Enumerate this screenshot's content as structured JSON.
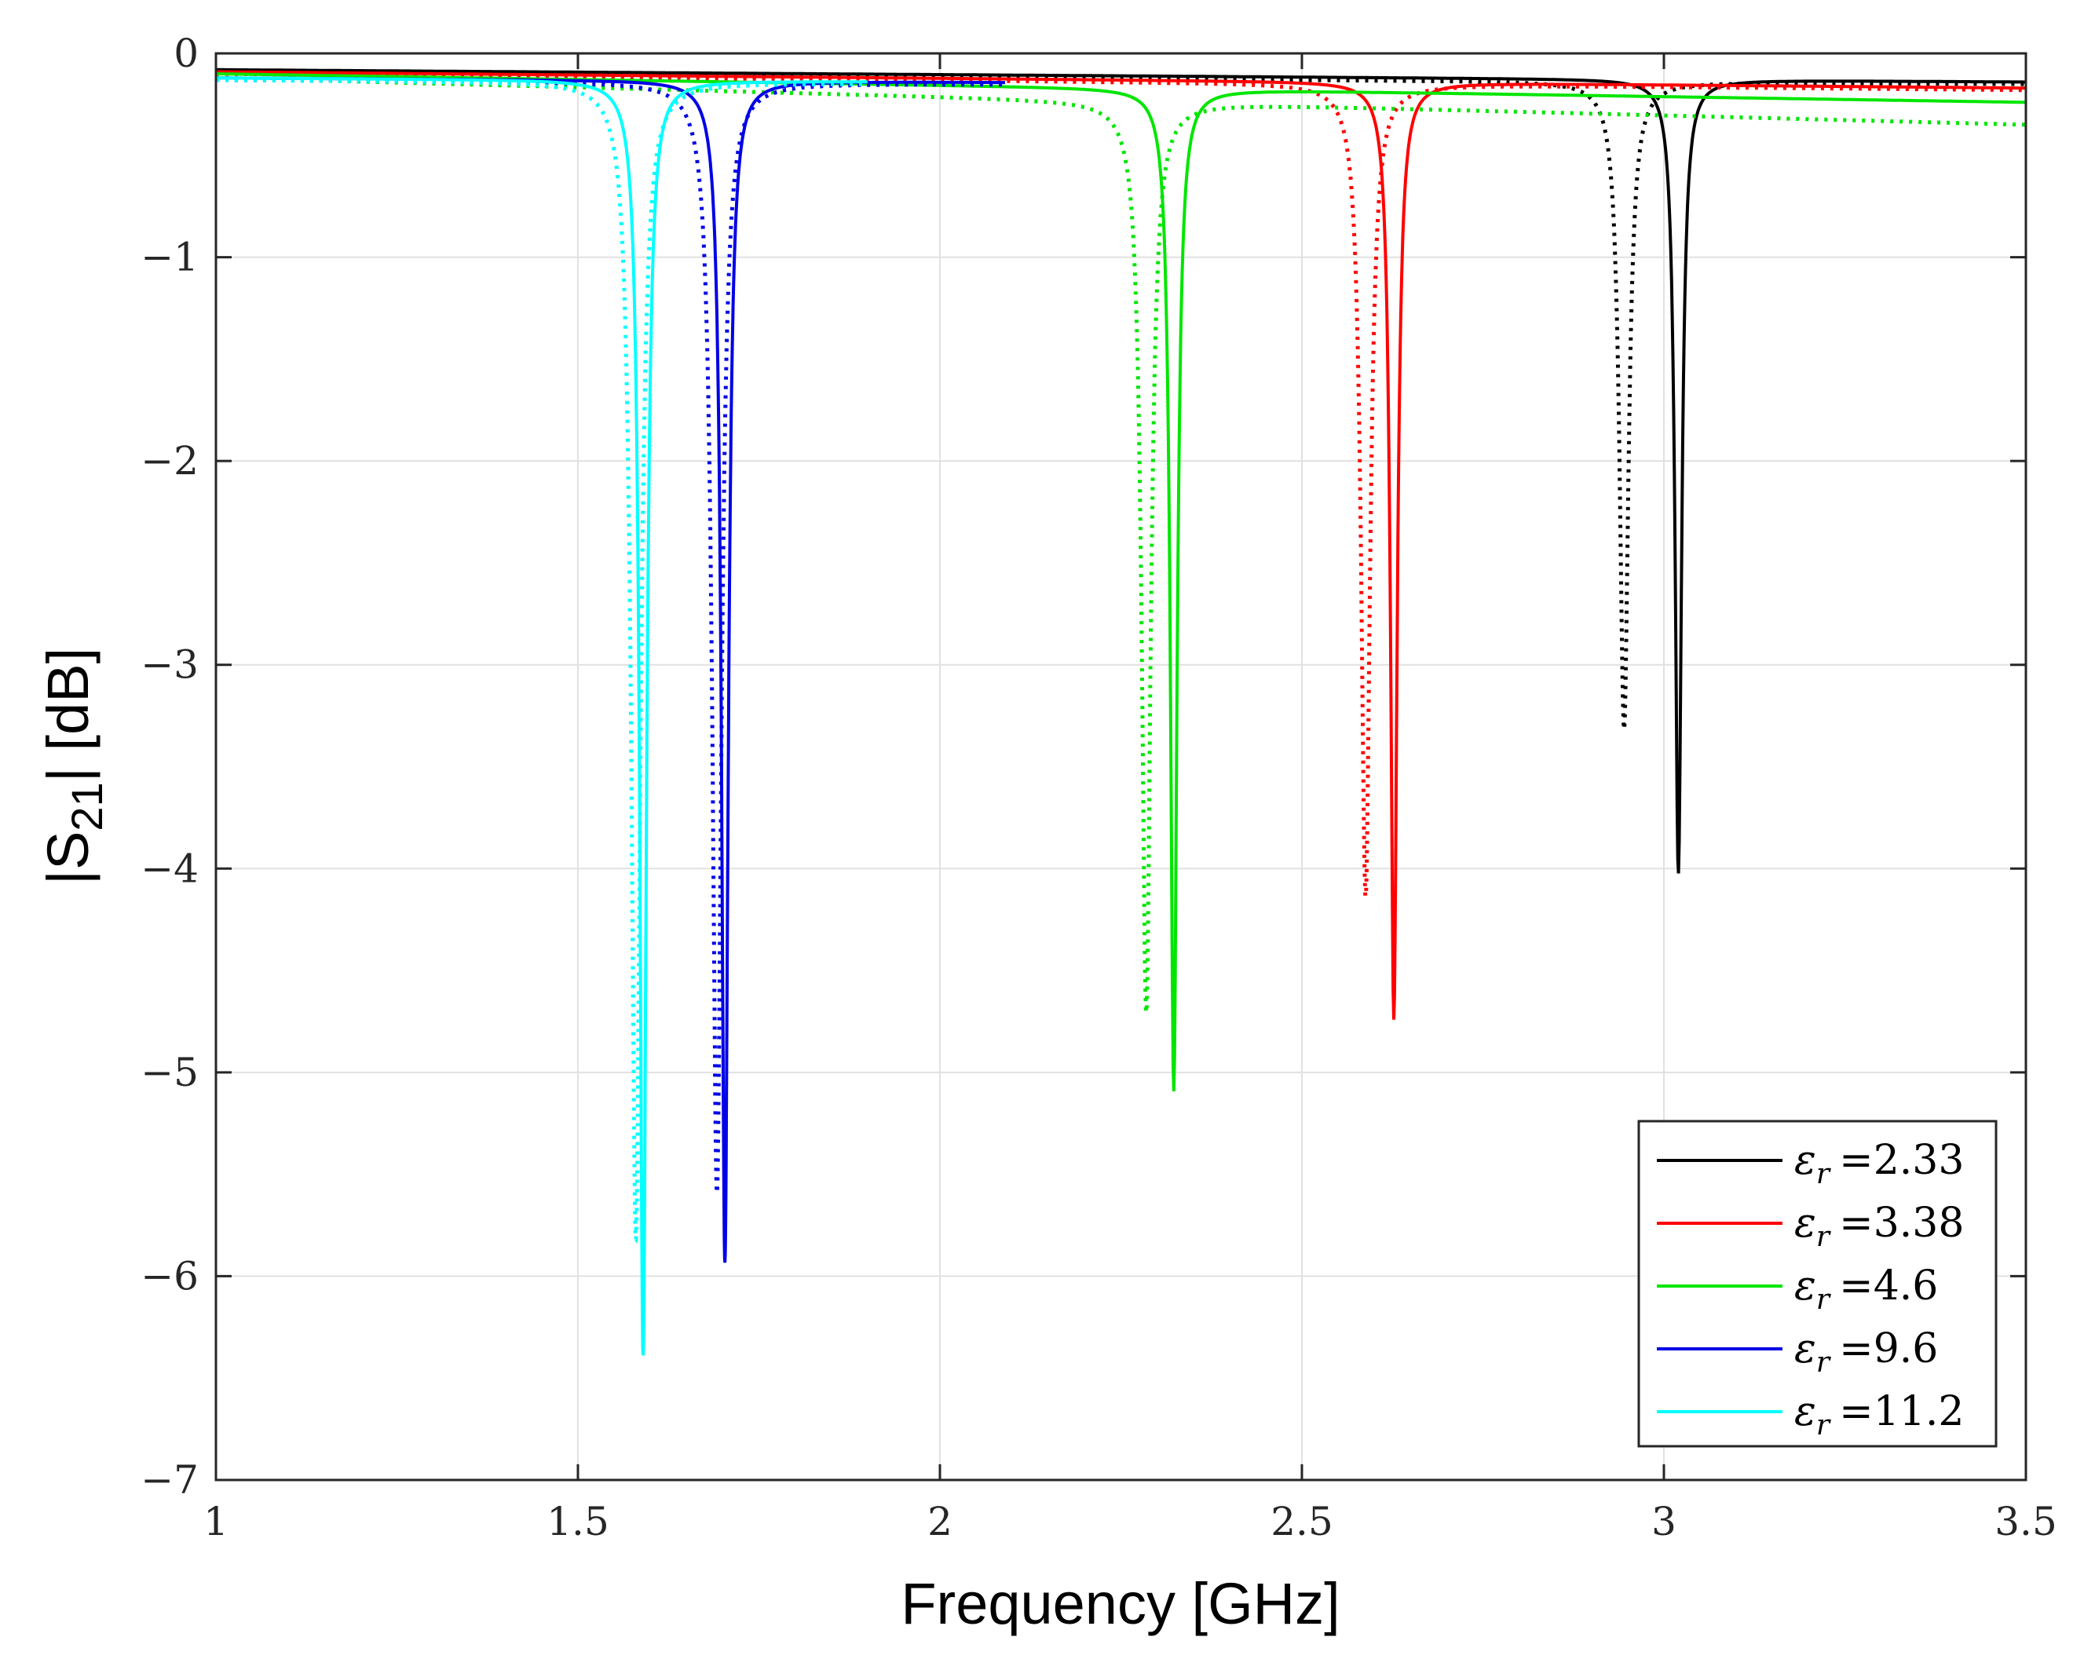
{
  "chart_data": {
    "type": "line",
    "title": "",
    "xlabel": "Frequency [GHz]",
    "ylabel_main": "|S",
    "ylabel_sub": "21",
    "ylabel_rest": "| [dB]",
    "xlim": [
      1,
      3.5
    ],
    "ylim": [
      -7,
      0
    ],
    "xticks": [
      1,
      1.5,
      2,
      2.5,
      3,
      3.5
    ],
    "xtick_labels": [
      "1",
      "1.5",
      "2",
      "2.5",
      "3",
      "3.5"
    ],
    "yticks": [
      0,
      -1,
      -2,
      -3,
      -4,
      -5,
      -6,
      -7
    ],
    "ytick_labels": [
      "0",
      "−1",
      "−2",
      "−3",
      "−4",
      "−5",
      "−6",
      "−7"
    ],
    "grid": true,
    "legend_position": "bottom-right",
    "legend_symbol": "ε",
    "legend_subscript": "r",
    "series": [
      {
        "name": "εr =2.33",
        "legend_value": "=2.33",
        "color": "#000000",
        "solid": {
          "f0": 3.02,
          "depth": 3.9,
          "width": 0.0055,
          "base_start": 0.08,
          "base_end": 0.14,
          "x_start": 1.0,
          "x_end": 3.5
        },
        "dotted": {
          "f0": 2.945,
          "depth": 3.18,
          "width": 0.0075,
          "base_start": 0.1,
          "base_end": 0.15,
          "x_start": 1.0,
          "x_end": 3.5
        }
      },
      {
        "name": "εr =3.38",
        "legend_value": "=3.38",
        "color": "#ff0000",
        "solid": {
          "f0": 2.627,
          "depth": 4.6,
          "width": 0.0055,
          "base_start": 0.09,
          "base_end": 0.17,
          "x_start": 1.0,
          "x_end": 3.5
        },
        "dotted": {
          "f0": 2.588,
          "depth": 4.0,
          "width": 0.0075,
          "base_start": 0.1,
          "base_end": 0.18,
          "x_start": 1.0,
          "x_end": 3.5
        }
      },
      {
        "name": "εr =4.6",
        "legend_value": "=4.6",
        "color": "#00e600",
        "solid": {
          "f0": 2.323,
          "depth": 4.92,
          "width": 0.0055,
          "base_start": 0.1,
          "base_end": 0.24,
          "x_start": 1.0,
          "x_end": 3.5
        },
        "dotted": {
          "f0": 2.285,
          "depth": 4.48,
          "width": 0.0075,
          "base_start": 0.12,
          "base_end": 0.35,
          "x_start": 1.0,
          "x_end": 3.5
        }
      },
      {
        "name": "εr =9.6",
        "legend_value": "=9.6",
        "color": "#0000e6",
        "solid": {
          "f0": 1.703,
          "depth": 5.8,
          "width": 0.0055,
          "base_start": 0.12,
          "base_end": 0.17,
          "x_start": 1.0,
          "x_end": 2.09
        },
        "dotted": {
          "f0": 1.692,
          "depth": 5.45,
          "width": 0.0075,
          "base_start": 0.13,
          "base_end": 0.18,
          "x_start": 1.0,
          "x_end": 2.09
        }
      },
      {
        "name": "εr =11.2",
        "legend_value": "=11.2",
        "color": "#00ffff",
        "solid": {
          "f0": 1.59,
          "depth": 6.26,
          "width": 0.0055,
          "base_start": 0.12,
          "base_end": 0.17,
          "x_start": 1.0,
          "x_end": 1.9
        },
        "dotted": {
          "f0": 1.58,
          "depth": 5.68,
          "width": 0.0075,
          "base_start": 0.13,
          "base_end": 0.18,
          "x_start": 1.0,
          "x_end": 1.9
        }
      }
    ]
  }
}
